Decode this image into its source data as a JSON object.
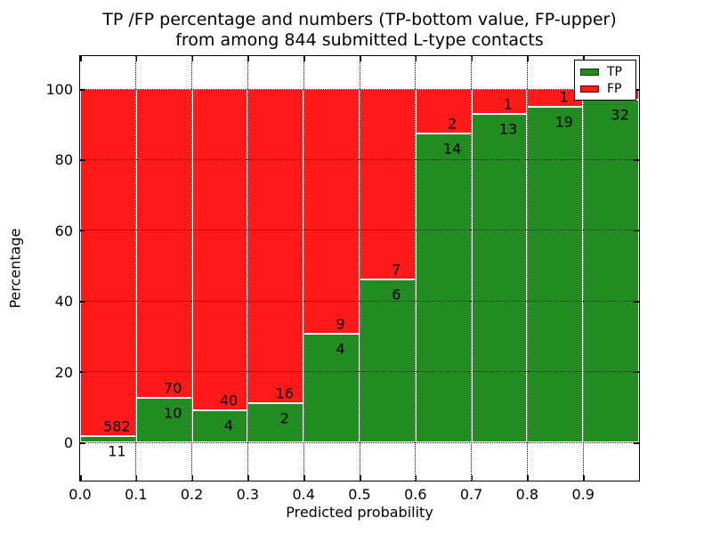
{
  "title": {
    "line1": "TP /FP percentage and numbers (TP-bottom value, FP-upper)",
    "line2": "from among 844 submitted L-type contacts"
  },
  "axes": {
    "xlabel": "Predicted probability",
    "ylabel": "Percentage"
  },
  "legend": {
    "items": [
      {
        "label": "TP",
        "color": "#228b22"
      },
      {
        "label": "FP",
        "color": "#ff1a1a"
      }
    ],
    "position": "upper-right"
  },
  "chart_data": {
    "type": "bar",
    "variant": "stacked-percent",
    "title": "TP /FP percentage and numbers (TP-bottom value, FP-upper)\nfrom among 844 submitted L-type contacts",
    "xlabel": "Predicted probability",
    "ylabel": "Percentage",
    "total_submitted": 844,
    "bin_edges": [
      0.0,
      0.1,
      0.2,
      0.3,
      0.4,
      0.5,
      0.6,
      0.7,
      0.8,
      0.9,
      1.0
    ],
    "series": [
      {
        "name": "TP",
        "color": "#228b22",
        "counts": [
          11,
          10,
          4,
          2,
          4,
          6,
          14,
          13,
          19,
          32
        ]
      },
      {
        "name": "FP",
        "color": "#ff1a1a",
        "counts": [
          582,
          70,
          40,
          16,
          9,
          7,
          2,
          1,
          1,
          1
        ]
      }
    ],
    "tp_percent_per_bin": [
      1.9,
      12.5,
      9.1,
      11.1,
      30.8,
      46.2,
      87.5,
      92.9,
      95.0,
      97.0
    ],
    "segment_labels_visible": {
      "fp": [
        "582",
        "70",
        "40",
        "16",
        "9",
        "7",
        "2",
        "1",
        "1",
        ""
      ],
      "tp": [
        "11",
        "10",
        "4",
        "2",
        "4",
        "6",
        "14",
        "13",
        "19",
        "32"
      ],
      "note": "FP label of last bin occluded by legend box"
    },
    "xticks": [
      "0.0",
      "0.1",
      "0.2",
      "0.3",
      "0.4",
      "0.5",
      "0.6",
      "0.7",
      "0.8",
      "0.9"
    ],
    "yticks": [
      "0",
      "20",
      "40",
      "60",
      "80",
      "100"
    ],
    "xlim": [
      0.0,
      1.0
    ],
    "ylim": [
      -10.8,
      108.8
    ],
    "grid": "dotted-black-over-bars",
    "bar_edge_color": "#ffffff",
    "legend_position": "upper-right"
  }
}
